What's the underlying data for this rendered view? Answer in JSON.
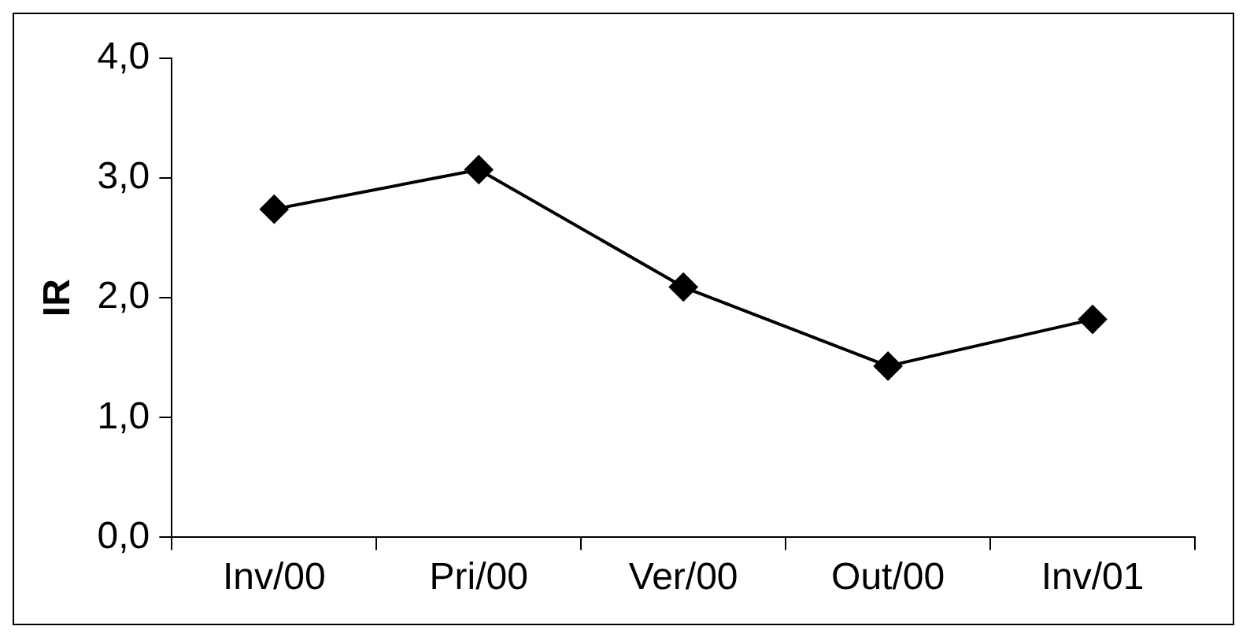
{
  "chart_data": {
    "type": "line",
    "ylabel": "IR",
    "categories": [
      "Inv/00",
      "Pri/00",
      "Ver/00",
      "Out/00",
      "Inv/01"
    ],
    "series": [
      {
        "color": "#000000",
        "values": [
          2.74,
          3.07,
          2.09,
          1.43,
          1.82
        ]
      }
    ],
    "ylim": [
      0,
      4
    ],
    "yticks": [
      {
        "value": 0,
        "label": "0,0"
      },
      {
        "value": 1,
        "label": "1,0"
      },
      {
        "value": 2,
        "label": "2,0"
      },
      {
        "value": 3,
        "label": "3,0"
      },
      {
        "value": 4,
        "label": "4,0"
      }
    ],
    "grid": false,
    "legend": false,
    "marker": "diamond",
    "line_style": "solid"
  }
}
